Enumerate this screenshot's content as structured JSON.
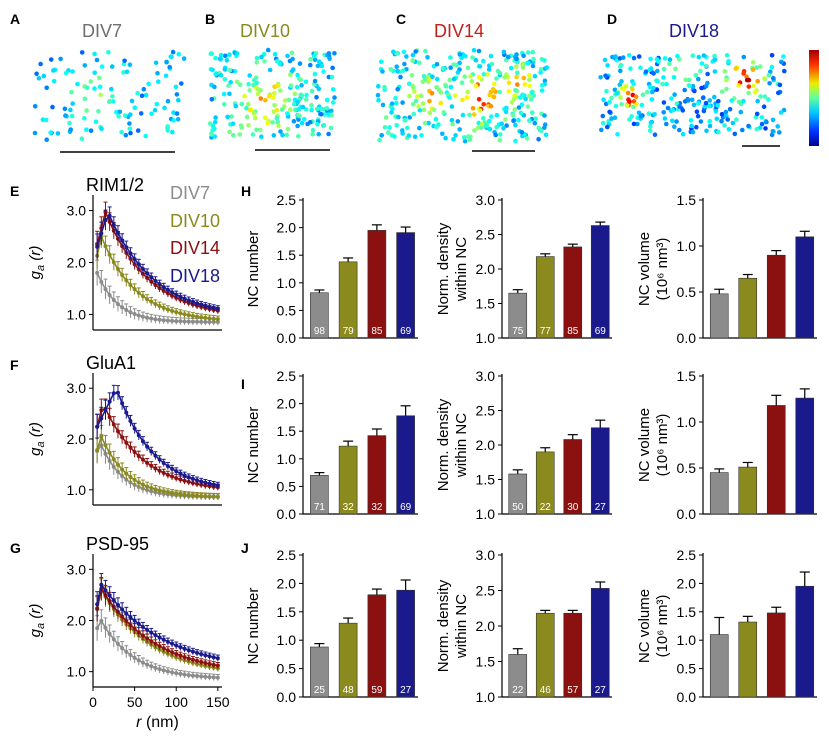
{
  "colors": {
    "DIV7": "#8c8c8c",
    "DIV10": "#8a8a1e",
    "DIV14": "#8b1010",
    "DIV18": "#1a1a8c"
  },
  "panels_top": [
    {
      "letter": "A",
      "title": "DIV7",
      "color": "#6e6e6e"
    },
    {
      "letter": "B",
      "title": "DIV10",
      "color": "#8a8a1e"
    },
    {
      "letter": "C",
      "title": "DIV14",
      "color": "#c0201a"
    },
    {
      "letter": "D",
      "title": "DIV18",
      "color": "#1a1a8c"
    }
  ],
  "legend": [
    "DIV7",
    "DIV10",
    "DIV14",
    "DIV18"
  ],
  "ylabel_gr": "g",
  "ylabel_gr_sub": "a",
  "ylabel_gr_tail": " (r)",
  "xlabel_gr": "r",
  "xlabel_gr_tail": " (nm)",
  "chart_data": [
    {
      "type": "line",
      "panel": "E",
      "title": "RIM1/2",
      "ylim": [
        0.7,
        3.3
      ],
      "yticks": [
        "1.0",
        "2.0",
        "3.0"
      ],
      "xlim": [
        0,
        155
      ],
      "xticks": [
        "0",
        "50",
        "100",
        "150"
      ],
      "series": [
        {
          "name": "DIV7",
          "params": [
            0.85,
            0.95,
            5,
            25
          ]
        },
        {
          "name": "DIV10",
          "params": [
            0.85,
            1.65,
            10,
            42
          ]
        },
        {
          "name": "DIV14",
          "params": [
            0.92,
            2.05,
            15,
            52
          ]
        },
        {
          "name": "DIV18",
          "params": [
            0.92,
            2.05,
            18,
            55
          ]
        }
      ]
    },
    {
      "type": "line",
      "panel": "F",
      "title": "GluA1",
      "ylim": [
        0.7,
        3.3
      ],
      "yticks": [
        "1.0",
        "2.0",
        "3.0"
      ],
      "xlim": [
        0,
        155
      ],
      "xticks": [
        "0",
        "50",
        "100",
        "150"
      ],
      "series": [
        {
          "name": "DIV7",
          "params": [
            0.85,
            1.1,
            8,
            28
          ]
        },
        {
          "name": "DIV10",
          "params": [
            0.85,
            1.2,
            10,
            32
          ]
        },
        {
          "name": "DIV14",
          "params": [
            0.95,
            1.75,
            12,
            48
          ]
        },
        {
          "name": "DIV18",
          "params": [
            0.95,
            2.05,
            28,
            45
          ]
        }
      ]
    },
    {
      "type": "line",
      "panel": "G",
      "title": "PSD-95",
      "ylim": [
        0.7,
        3.3
      ],
      "yticks": [
        "1.0",
        "2.0",
        "3.0"
      ],
      "xlim": [
        0,
        155
      ],
      "xticks": [
        "0",
        "50",
        "100",
        "150"
      ],
      "series": [
        {
          "name": "DIV7",
          "params": [
            0.85,
            1.2,
            8,
            40
          ]
        },
        {
          "name": "DIV10",
          "params": [
            0.9,
            1.7,
            10,
            60
          ]
        },
        {
          "name": "DIV14",
          "params": [
            0.92,
            1.7,
            10,
            65
          ]
        },
        {
          "name": "DIV18",
          "params": [
            1.0,
            1.7,
            10,
            75
          ]
        }
      ]
    },
    {
      "type": "bar",
      "panel": "H",
      "ylabel": [
        "NC number"
      ],
      "ymin": 0,
      "ymax": 2.5,
      "yticks": [
        "0.0",
        "0.5",
        "1.0",
        "1.5",
        "2.0",
        "2.5"
      ],
      "categories": [
        "DIV7",
        "DIV10",
        "DIV14",
        "DIV18"
      ],
      "values": [
        0.82,
        1.38,
        1.95,
        1.91
      ],
      "errors": [
        0.05,
        0.07,
        0.1,
        0.1
      ],
      "n": [
        "98",
        "79",
        "85",
        "69"
      ]
    },
    {
      "type": "bar",
      "panel": "H",
      "ylabel": [
        "Norm. density",
        "within NC"
      ],
      "ymin": 1.0,
      "ymax": 3.0,
      "yticks": [
        "1.0",
        "1.5",
        "2.0",
        "2.5",
        "3.0"
      ],
      "categories": [
        "DIV7",
        "DIV10",
        "DIV14",
        "DIV18"
      ],
      "values": [
        1.65,
        2.18,
        2.32,
        2.63
      ],
      "errors": [
        0.05,
        0.04,
        0.04,
        0.05
      ],
      "n": [
        "75",
        "77",
        "85",
        "69"
      ]
    },
    {
      "type": "bar",
      "panel": "H",
      "ylabel": [
        "NC volume",
        "(10⁶ nm³)"
      ],
      "ymin": 0.0,
      "ymax": 1.5,
      "yticks": [
        "0.0",
        "0.5",
        "1.0",
        "1.5"
      ],
      "categories": [
        "DIV7",
        "DIV10",
        "DIV14",
        "DIV18"
      ],
      "values": [
        0.48,
        0.65,
        0.9,
        1.1
      ],
      "errors": [
        0.05,
        0.04,
        0.05,
        0.06
      ],
      "n": [
        "",
        "",
        "",
        ""
      ]
    },
    {
      "type": "bar",
      "panel": "I",
      "ylabel": [
        "NC number"
      ],
      "ymin": 0,
      "ymax": 2.5,
      "yticks": [
        "0.0",
        "0.5",
        "1.0",
        "1.5",
        "2.0",
        "2.5"
      ],
      "categories": [
        "DIV7",
        "DIV10",
        "DIV14",
        "DIV18"
      ],
      "values": [
        0.7,
        1.23,
        1.42,
        1.78
      ],
      "errors": [
        0.05,
        0.09,
        0.12,
        0.18
      ],
      "n": [
        "71",
        "32",
        "32",
        "69"
      ]
    },
    {
      "type": "bar",
      "panel": "I",
      "ylabel": [
        "Norm. density",
        "within NC"
      ],
      "ymin": 1.0,
      "ymax": 3.0,
      "yticks": [
        "1.0",
        "1.5",
        "2.0",
        "2.5",
        "3.0"
      ],
      "categories": [
        "DIV7",
        "DIV10",
        "DIV14",
        "DIV18"
      ],
      "values": [
        1.58,
        1.9,
        2.08,
        2.25
      ],
      "errors": [
        0.06,
        0.06,
        0.07,
        0.11
      ],
      "n": [
        "50",
        "22",
        "30",
        "27"
      ]
    },
    {
      "type": "bar",
      "panel": "I",
      "ylabel": [
        "NC volume",
        "(10⁶ nm³)"
      ],
      "ymin": 0.0,
      "ymax": 1.5,
      "yticks": [
        "0.0",
        "0.5",
        "1.0",
        "1.5"
      ],
      "categories": [
        "DIV7",
        "DIV10",
        "DIV14",
        "DIV18"
      ],
      "values": [
        0.45,
        0.51,
        1.18,
        1.26
      ],
      "errors": [
        0.04,
        0.05,
        0.11,
        0.1
      ],
      "n": [
        "",
        "",
        "",
        ""
      ]
    },
    {
      "type": "bar",
      "panel": "J",
      "ylabel": [
        "NC number"
      ],
      "ymin": 0,
      "ymax": 2.5,
      "yticks": [
        "0.0",
        "0.5",
        "1.0",
        "1.5",
        "2.0",
        "2.5"
      ],
      "categories": [
        "DIV7",
        "DIV10",
        "DIV14",
        "DIV18"
      ],
      "values": [
        0.88,
        1.3,
        1.8,
        1.88
      ],
      "errors": [
        0.06,
        0.09,
        0.1,
        0.18
      ],
      "n": [
        "25",
        "48",
        "59",
        "27"
      ]
    },
    {
      "type": "bar",
      "panel": "J",
      "ylabel": [
        "Norm. density",
        "within NC"
      ],
      "ymin": 1.0,
      "ymax": 3.0,
      "yticks": [
        "1.0",
        "1.5",
        "2.0",
        "2.5",
        "3.0"
      ],
      "categories": [
        "DIV7",
        "DIV10",
        "DIV14",
        "DIV18"
      ],
      "values": [
        1.6,
        2.18,
        2.18,
        2.53
      ],
      "errors": [
        0.08,
        0.04,
        0.04,
        0.09
      ],
      "n": [
        "22",
        "46",
        "57",
        "27"
      ]
    },
    {
      "type": "bar",
      "panel": "J",
      "ylabel": [
        "NC volume",
        "(10⁶ nm³)"
      ],
      "ymin": 0.0,
      "ymax": 2.5,
      "yticks": [
        "0.0",
        "0.5",
        "1.0",
        "1.5",
        "2.0",
        "2.5"
      ],
      "categories": [
        "DIV7",
        "DIV10",
        "DIV14",
        "DIV18"
      ],
      "values": [
        1.1,
        1.32,
        1.48,
        1.95
      ],
      "errors": [
        0.3,
        0.1,
        0.1,
        0.25
      ],
      "n": [
        "",
        "",
        "",
        ""
      ]
    }
  ]
}
